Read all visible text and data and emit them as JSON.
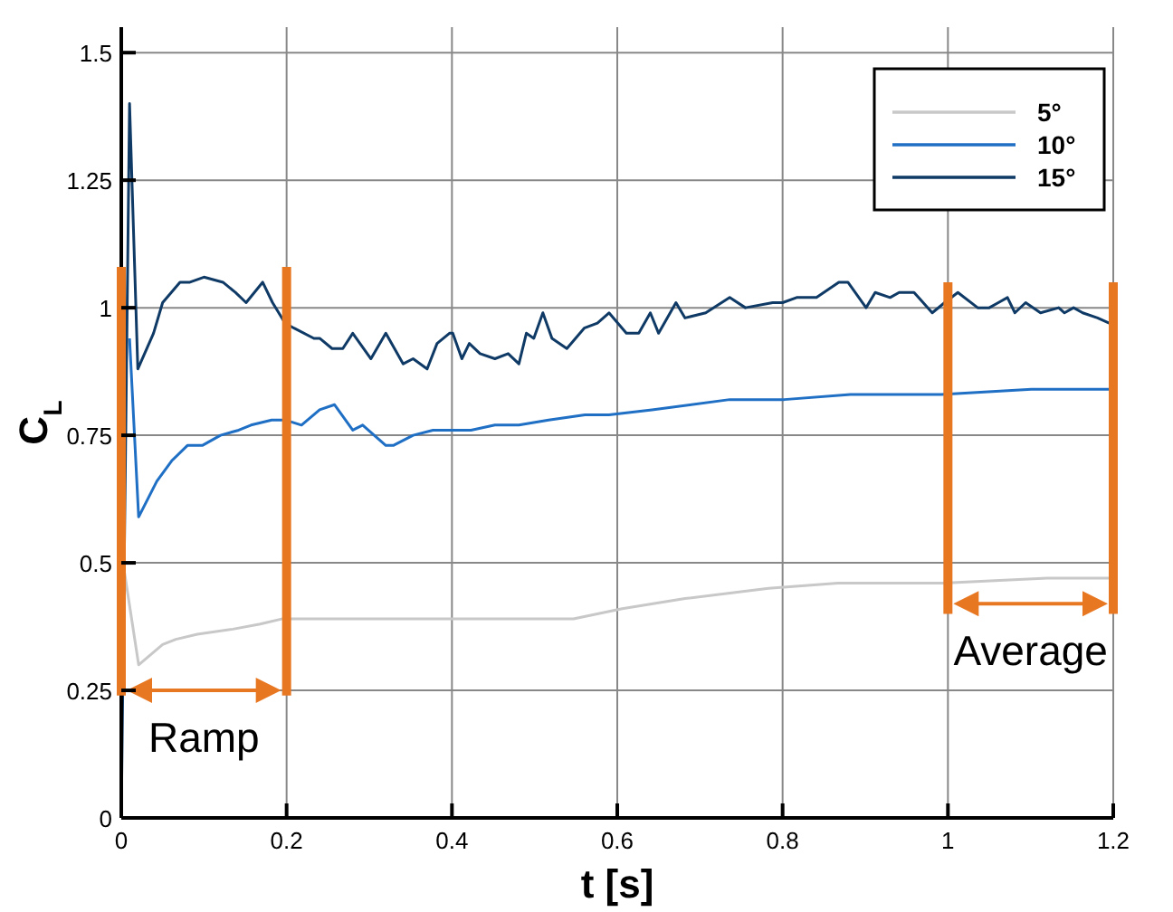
{
  "chart_data": {
    "type": "line",
    "xlabel": "t [s]",
    "ylabel": "C$_{L}$",
    "xlim": [
      0,
      1.2
    ],
    "ylim": [
      0,
      1.55
    ],
    "xticks": [
      0,
      0.2,
      0.4,
      0.6,
      0.8,
      1,
      1.2
    ],
    "yticks": [
      0,
      0.25,
      0.5,
      0.75,
      1,
      1.25,
      1.5
    ],
    "grid": true,
    "legend": "top right",
    "line_style": "solid",
    "marker": "none",
    "series": [
      {
        "name": "5°",
        "color": "#c8c8c8",
        "x": [
          0.004,
          0.021,
          0.05,
          0.066,
          0.092,
          0.135,
          0.168,
          0.194,
          0.228,
          0.294,
          0.362,
          0.431,
          0.497,
          0.547,
          0.606,
          0.682,
          0.783,
          0.867,
          0.994,
          1.12,
          1.2
        ],
        "values": [
          0.48,
          0.3,
          0.34,
          0.35,
          0.36,
          0.37,
          0.38,
          0.39,
          0.39,
          0.39,
          0.39,
          0.39,
          0.39,
          0.39,
          0.41,
          0.43,
          0.45,
          0.46,
          0.46,
          0.47,
          0.47
        ]
      },
      {
        "name": "10°",
        "color": "#1f6fc5",
        "x": [
          0.01,
          0.021,
          0.043,
          0.061,
          0.08,
          0.098,
          0.12,
          0.142,
          0.157,
          0.182,
          0.198,
          0.218,
          0.24,
          0.258,
          0.28,
          0.292,
          0.306,
          0.32,
          0.329,
          0.353,
          0.377,
          0.401,
          0.423,
          0.452,
          0.481,
          0.517,
          0.561,
          0.59,
          0.642,
          0.736,
          0.802,
          0.882,
          0.992,
          1.101,
          1.2
        ],
        "values": [
          0.94,
          0.59,
          0.66,
          0.7,
          0.73,
          0.73,
          0.75,
          0.76,
          0.77,
          0.78,
          0.78,
          0.77,
          0.8,
          0.81,
          0.76,
          0.77,
          0.75,
          0.73,
          0.73,
          0.75,
          0.76,
          0.76,
          0.76,
          0.77,
          0.77,
          0.78,
          0.79,
          0.79,
          0.8,
          0.82,
          0.82,
          0.83,
          0.83,
          0.84,
          0.84
        ]
      },
      {
        "name": "15°",
        "color": "#0f3a66",
        "x": [
          0,
          0.01,
          0.02,
          0.039,
          0.05,
          0.071,
          0.083,
          0.1,
          0.123,
          0.138,
          0.151,
          0.171,
          0.183,
          0.198,
          0.209,
          0.233,
          0.24,
          0.255,
          0.268,
          0.28,
          0.302,
          0.32,
          0.341,
          0.353,
          0.37,
          0.382,
          0.397,
          0.401,
          0.412,
          0.421,
          0.434,
          0.452,
          0.468,
          0.481,
          0.49,
          0.499,
          0.51,
          0.521,
          0.539,
          0.56,
          0.576,
          0.59,
          0.611,
          0.626,
          0.64,
          0.65,
          0.671,
          0.682,
          0.707,
          0.736,
          0.755,
          0.788,
          0.8,
          0.817,
          0.841,
          0.868,
          0.879,
          0.901,
          0.912,
          0.93,
          0.941,
          0.959,
          0.981,
          0.996,
          1.012,
          1.036,
          1.05,
          1.061,
          1.072,
          1.081,
          1.094,
          1.112,
          1.134,
          1.141,
          1.152,
          1.163,
          1.181,
          1.195
        ],
        "values": [
          0,
          1.4,
          0.88,
          0.95,
          1.01,
          1.05,
          1.05,
          1.06,
          1.05,
          1.03,
          1.01,
          1.05,
          1.01,
          0.97,
          0.96,
          0.94,
          0.94,
          0.92,
          0.92,
          0.95,
          0.9,
          0.95,
          0.89,
          0.9,
          0.88,
          0.93,
          0.95,
          0.95,
          0.9,
          0.93,
          0.91,
          0.9,
          0.91,
          0.89,
          0.95,
          0.94,
          0.99,
          0.94,
          0.92,
          0.96,
          0.97,
          0.99,
          0.95,
          0.95,
          0.99,
          0.95,
          1.01,
          0.98,
          0.99,
          1.02,
          1,
          1.01,
          1.01,
          1.02,
          1.02,
          1.05,
          1.05,
          1,
          1.03,
          1.02,
          1.03,
          1.03,
          0.99,
          1.01,
          1.03,
          1,
          1,
          1.01,
          1.02,
          0.99,
          1.01,
          0.99,
          1,
          0.99,
          1,
          0.99,
          0.98,
          0.97
        ]
      }
    ],
    "ref_lines": [
      {
        "axis": "x",
        "value": 0,
        "color": "#e87722"
      },
      {
        "axis": "x",
        "value": 0.2,
        "color": "#e87722"
      },
      {
        "axis": "x",
        "value": 1,
        "color": "#e87722"
      },
      {
        "axis": "x",
        "value": 1.2,
        "color": "#e87722"
      }
    ],
    "annotations": [
      "Ramp",
      "Average"
    ]
  }
}
